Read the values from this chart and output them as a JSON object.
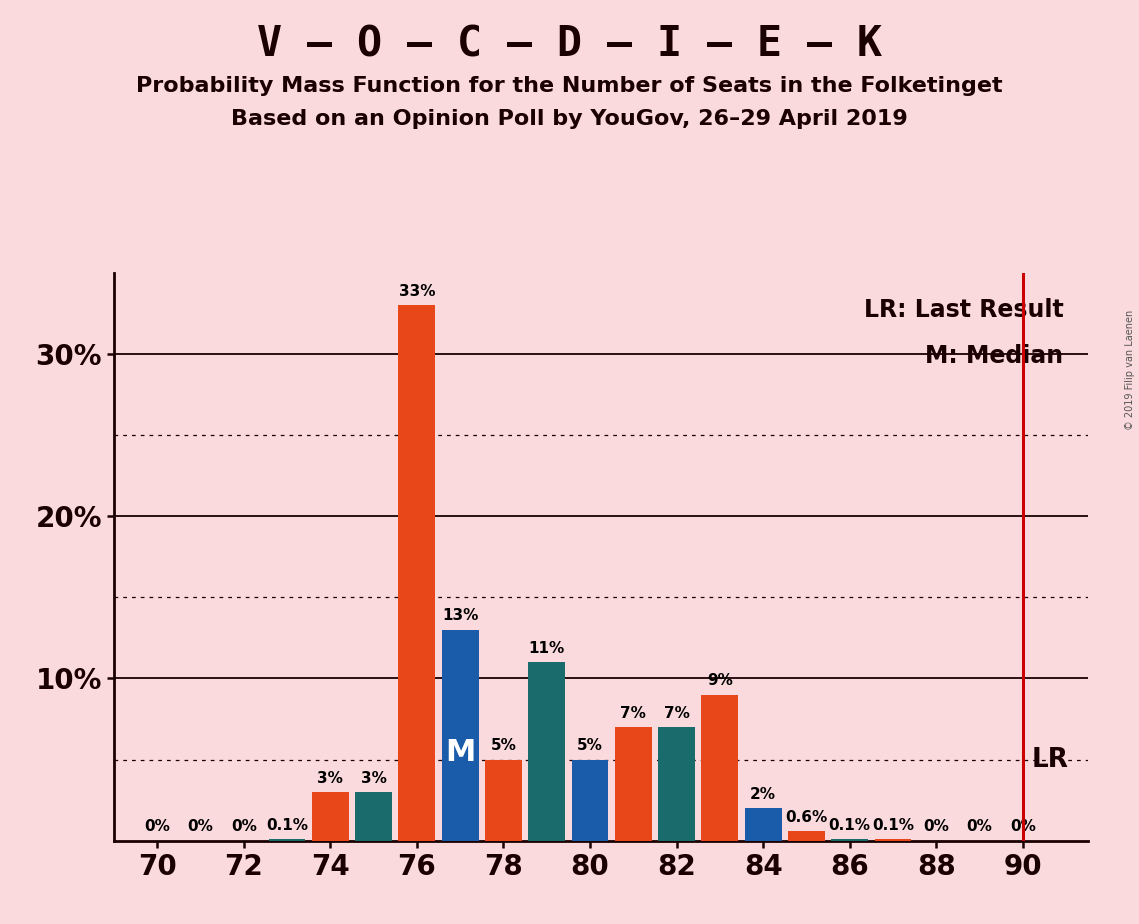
{
  "title": "V – O – C – D – I – E – K",
  "subtitle1": "Probability Mass Function for the Number of Seats in the Folketinget",
  "subtitle2": "Based on an Opinion Poll by YouGov, 26–29 April 2019",
  "copyright": "© 2019 Filip van Laenen",
  "background_color": "#FADADD",
  "bar_data": [
    {
      "seat": 70,
      "prob": 0.0,
      "color": "#E8471A",
      "label": "0%"
    },
    {
      "seat": 71,
      "prob": 0.0,
      "color": "#1A6B6B",
      "label": "0%"
    },
    {
      "seat": 72,
      "prob": 0.0,
      "color": "#E8471A",
      "label": "0%"
    },
    {
      "seat": 73,
      "prob": 0.1,
      "color": "#1A6B6B",
      "label": "0.1%"
    },
    {
      "seat": 74,
      "prob": 3.0,
      "color": "#E8471A",
      "label": "3%"
    },
    {
      "seat": 75,
      "prob": 3.0,
      "color": "#1A6B6B",
      "label": "3%"
    },
    {
      "seat": 76,
      "prob": 33.0,
      "color": "#E8471A",
      "label": "33%"
    },
    {
      "seat": 77,
      "prob": 13.0,
      "color": "#1A5BAA",
      "label": "13%"
    },
    {
      "seat": 78,
      "prob": 5.0,
      "color": "#E8471A",
      "label": "5%"
    },
    {
      "seat": 79,
      "prob": 11.0,
      "color": "#1A6B6B",
      "label": "11%"
    },
    {
      "seat": 80,
      "prob": 5.0,
      "color": "#1A5BAA",
      "label": "5%"
    },
    {
      "seat": 81,
      "prob": 7.0,
      "color": "#E8471A",
      "label": "7%"
    },
    {
      "seat": 82,
      "prob": 7.0,
      "color": "#1A6B6B",
      "label": "7%"
    },
    {
      "seat": 83,
      "prob": 9.0,
      "color": "#E8471A",
      "label": "9%"
    },
    {
      "seat": 84,
      "prob": 2.0,
      "color": "#1A5BAA",
      "label": "2%"
    },
    {
      "seat": 85,
      "prob": 0.6,
      "color": "#E8471A",
      "label": "0.6%"
    },
    {
      "seat": 86,
      "prob": 0.1,
      "color": "#1A6B6B",
      "label": "0.1%"
    },
    {
      "seat": 87,
      "prob": 0.1,
      "color": "#E8471A",
      "label": "0.1%"
    },
    {
      "seat": 88,
      "prob": 0.0,
      "color": "#1A6B6B",
      "label": "0%"
    },
    {
      "seat": 89,
      "prob": 0.0,
      "color": "#E8471A",
      "label": "0%"
    },
    {
      "seat": 90,
      "prob": 0.0,
      "color": "#1A6B6B",
      "label": "0%"
    }
  ],
  "median_seat": 77,
  "median_label": "M",
  "lr_seat": 90,
  "lr_color": "#CC0000",
  "annotation_lr": "LR: Last Result",
  "annotation_m": "M: Median",
  "lr_side_label": "LR",
  "ylim_max": 35,
  "major_yticks": [
    10,
    20,
    30
  ],
  "minor_yticks": [
    5,
    15,
    25
  ],
  "xlim": [
    69.0,
    91.5
  ],
  "xticks": [
    70,
    72,
    74,
    76,
    78,
    80,
    82,
    84,
    86,
    88,
    90
  ],
  "bar_width": 0.85,
  "title_fontsize": 30,
  "subtitle_fontsize": 16,
  "tick_fontsize": 20,
  "label_fontsize": 11,
  "annotation_fontsize": 17,
  "lr_label_fontsize": 19
}
